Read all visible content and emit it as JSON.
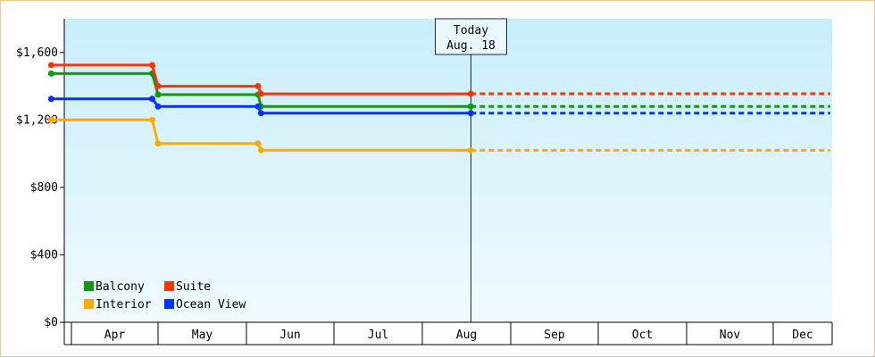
{
  "chart_data": {
    "type": "line",
    "step": true,
    "title": "",
    "xlabel": "",
    "ylabel": "",
    "ylim": [
      0,
      1800
    ],
    "yticks": [
      {
        "value": 0,
        "label": "$0"
      },
      {
        "value": 400,
        "label": "$400"
      },
      {
        "value": 800,
        "label": "$800"
      },
      {
        "value": 1200,
        "label": "$1,200"
      },
      {
        "value": 1600,
        "label": "$1,600"
      }
    ],
    "grid": false,
    "months": [
      "Apr",
      "May",
      "Jun",
      "Jul",
      "Aug",
      "Sep",
      "Oct",
      "Nov",
      "Dec"
    ],
    "today": {
      "line1": "Today",
      "line2": "Aug. 18",
      "x": "2023-08-18"
    },
    "x_end": "2023-12-31",
    "legend": {
      "position": "bottom-left"
    },
    "series": [
      {
        "name": "Balcony",
        "color": "#0d9a0d",
        "points": [
          [
            "2023-03-25",
            1475
          ],
          [
            "2023-04-29",
            1475
          ],
          [
            "2023-05-01",
            1350
          ],
          [
            "2023-06-05",
            1350
          ],
          [
            "2023-06-06",
            1280
          ],
          [
            "2023-08-18",
            1280
          ]
        ],
        "projection": 1280
      },
      {
        "name": "Suite",
        "color": "#ff3300",
        "points": [
          [
            "2023-03-25",
            1525
          ],
          [
            "2023-04-29",
            1525
          ],
          [
            "2023-05-01",
            1400
          ],
          [
            "2023-06-05",
            1400
          ],
          [
            "2023-06-06",
            1355
          ],
          [
            "2023-08-18",
            1355
          ]
        ],
        "projection": 1355
      },
      {
        "name": "Interior",
        "color": "#ffaa00",
        "points": [
          [
            "2023-03-25",
            1200
          ],
          [
            "2023-04-29",
            1200
          ],
          [
            "2023-05-01",
            1060
          ],
          [
            "2023-06-05",
            1060
          ],
          [
            "2023-06-06",
            1020
          ],
          [
            "2023-08-18",
            1020
          ]
        ],
        "projection": 1020
      },
      {
        "name": "Ocean View",
        "color": "#0033ff",
        "points": [
          [
            "2023-03-25",
            1325
          ],
          [
            "2023-04-29",
            1325
          ],
          [
            "2023-05-01",
            1280
          ],
          [
            "2023-06-05",
            1280
          ],
          [
            "2023-06-06",
            1240
          ],
          [
            "2023-08-18",
            1240
          ]
        ],
        "projection": 1240
      }
    ]
  }
}
